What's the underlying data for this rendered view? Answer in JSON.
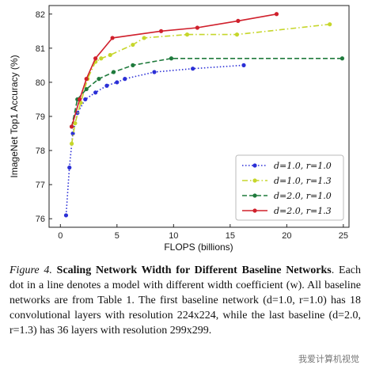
{
  "chart_data": {
    "type": "line",
    "xlabel": "FLOPS (billions)",
    "ylabel": "ImageNet Top1 Accuracy (%)",
    "xlim": [
      -1,
      25.5
    ],
    "ylim": [
      75.75,
      82.25
    ],
    "xticks": [
      0,
      5,
      10,
      15,
      20,
      25
    ],
    "yticks": [
      76,
      77,
      78,
      79,
      80,
      81,
      82
    ],
    "legend_position": "lower-right",
    "series": [
      {
        "name": "d=1.0, r=1.0",
        "color": "#2b2fd6",
        "style": "dotted",
        "x": [
          0.5,
          0.8,
          1.1,
          1.5,
          2.2,
          3.1,
          4.1,
          5.0,
          5.7,
          8.3,
          11.7,
          16.2
        ],
        "y": [
          76.1,
          77.5,
          78.5,
          79.1,
          79.5,
          79.7,
          79.9,
          80.0,
          80.1,
          80.3,
          80.4,
          80.5
        ]
      },
      {
        "name": "d=1.0, r=1.3",
        "color": "#c6d62b",
        "style": "dashdot",
        "x": [
          1.0,
          1.3,
          1.8,
          2.4,
          3.1,
          3.6,
          4.4,
          6.4,
          7.4,
          11.2,
          15.6,
          23.8
        ],
        "y": [
          78.2,
          78.8,
          79.4,
          80.1,
          80.6,
          80.7,
          80.8,
          81.1,
          81.3,
          81.4,
          81.4,
          81.7
        ]
      },
      {
        "name": "d=2.0, r=1.0",
        "color": "#1f7a3c",
        "style": "dashed",
        "x": [
          1.0,
          1.5,
          2.3,
          3.4,
          4.7,
          6.4,
          9.8,
          24.9
        ],
        "y": [
          78.7,
          79.5,
          79.8,
          80.1,
          80.3,
          80.5,
          80.7,
          80.7
        ]
      },
      {
        "name": "d=2.0, r=1.3",
        "color": "#d0202c",
        "style": "solid",
        "x": [
          1.0,
          1.7,
          2.3,
          3.1,
          4.6,
          8.9,
          12.1,
          15.7,
          19.1
        ],
        "y": [
          78.7,
          79.5,
          80.1,
          80.7,
          81.3,
          81.5,
          81.6,
          81.8,
          82.0
        ]
      }
    ]
  },
  "caption": {
    "figure_label": "Figure 4.",
    "title": "Scaling Network Width for Different Baseline Networks",
    "body": ". Each dot in a line denotes a model with different width coefficient (w). All baseline networks are from Table 1. The first baseline network (d=1.0, r=1.0) has 18 convolutional layers with resolution 224x224, while the last baseline (d=2.0, r=1.3) has 36 layers with resolution 299x299."
  },
  "watermark": "我爱计算机视觉"
}
